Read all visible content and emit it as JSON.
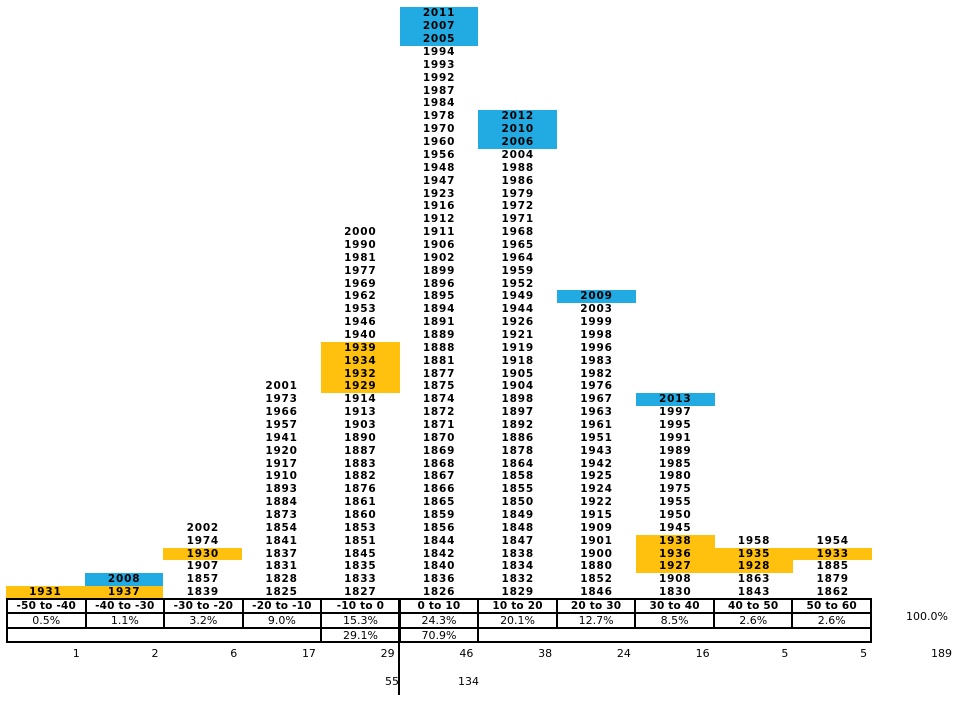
{
  "colors": {
    "highlight_recent_blue": "#21ABE2",
    "highlight_depression_orange": "#FFC10D",
    "text": "#000000",
    "background": "#FFFFFF"
  },
  "chart_data": {
    "type": "bar",
    "variant": "histogram of annual returns, each bar stacked from individual year labels, bottom-aligned",
    "title": "",
    "xlabel": "",
    "ylabel": "",
    "legend_position": "none",
    "grid": false,
    "categories": [
      "-50 to -40",
      "-40 to -30",
      "-30 to -20",
      "-20 to -10",
      "-10 to 0",
      "0 to 10",
      "10 to 20",
      "20 to 30",
      "30 to 40",
      "40 to 50",
      "50 to 60"
    ],
    "values": [
      1,
      2,
      6,
      17,
      29,
      46,
      38,
      24,
      16,
      5,
      5
    ],
    "percent_labels": [
      "0.5%",
      "1.1%",
      "3.2%",
      "9.0%",
      "15.3%",
      "24.3%",
      "20.1%",
      "12.7%",
      "8.5%",
      "2.6%",
      "2.6%"
    ],
    "highlight_blue_years": [
      "2005",
      "2006",
      "2007",
      "2008",
      "2009",
      "2010",
      "2011",
      "2012",
      "2013"
    ],
    "highlight_orange_years": [
      "1927",
      "1928",
      "1929",
      "1930",
      "1931",
      "1932",
      "1933",
      "1934",
      "1935",
      "1936",
      "1937",
      "1938",
      "1939"
    ],
    "bins": [
      {
        "label": "-50 to -40",
        "pct": "0.5%",
        "count": "1",
        "years": [
          "1931"
        ]
      },
      {
        "label": "-40 to -30",
        "pct": "1.1%",
        "count": "2",
        "years": [
          "2008",
          "1937"
        ]
      },
      {
        "label": "-30 to -20",
        "pct": "3.2%",
        "count": "6",
        "years": [
          "2002",
          "1974",
          "1930",
          "1907",
          "1857",
          "1839"
        ]
      },
      {
        "label": "-20 to -10",
        "pct": "9.0%",
        "count": "17",
        "years": [
          "2001",
          "1973",
          "1966",
          "1957",
          "1941",
          "1920",
          "1917",
          "1910",
          "1893",
          "1884",
          "1873",
          "1854",
          "1841",
          "1837",
          "1831",
          "1828",
          "1825"
        ]
      },
      {
        "label": "-10 to 0",
        "pct": "15.3%",
        "count": "29",
        "years": [
          "2000",
          "1990",
          "1981",
          "1977",
          "1969",
          "1962",
          "1953",
          "1946",
          "1940",
          "1939",
          "1934",
          "1932",
          "1929",
          "1914",
          "1913",
          "1903",
          "1890",
          "1887",
          "1883",
          "1882",
          "1876",
          "1861",
          "1860",
          "1853",
          "1851",
          "1845",
          "1835",
          "1833",
          "1827"
        ]
      },
      {
        "label": "0 to 10",
        "pct": "24.3%",
        "count": "46",
        "years": [
          "2011",
          "2007",
          "2005",
          "1994",
          "1993",
          "1992",
          "1987",
          "1984",
          "1978",
          "1970",
          "1960",
          "1956",
          "1948",
          "1947",
          "1923",
          "1916",
          "1912",
          "1911",
          "1906",
          "1902",
          "1899",
          "1896",
          "1895",
          "1894",
          "1891",
          "1889",
          "1888",
          "1881",
          "1877",
          "1875",
          "1874",
          "1872",
          "1871",
          "1870",
          "1869",
          "1868",
          "1867",
          "1866",
          "1865",
          "1859",
          "1856",
          "1844",
          "1842",
          "1840",
          "1836",
          "1826"
        ]
      },
      {
        "label": "10 to 20",
        "pct": "20.1%",
        "count": "38",
        "years": [
          "2012",
          "2010",
          "2006",
          "2004",
          "1988",
          "1986",
          "1979",
          "1972",
          "1971",
          "1968",
          "1965",
          "1964",
          "1959",
          "1952",
          "1949",
          "1944",
          "1926",
          "1921",
          "1919",
          "1918",
          "1905",
          "1904",
          "1898",
          "1897",
          "1892",
          "1886",
          "1878",
          "1864",
          "1858",
          "1855",
          "1850",
          "1849",
          "1848",
          "1847",
          "1838",
          "1834",
          "1832",
          "1829"
        ]
      },
      {
        "label": "20 to 30",
        "pct": "12.7%",
        "count": "24",
        "years": [
          "2009",
          "2003",
          "1999",
          "1998",
          "1996",
          "1983",
          "1982",
          "1976",
          "1967",
          "1963",
          "1961",
          "1951",
          "1943",
          "1942",
          "1925",
          "1924",
          "1922",
          "1915",
          "1909",
          "1901",
          "1900",
          "1880",
          "1852",
          "1846"
        ]
      },
      {
        "label": "30 to 40",
        "pct": "8.5%",
        "count": "16",
        "years": [
          "2013",
          "1997",
          "1995",
          "1991",
          "1989",
          "1985",
          "1980",
          "1975",
          "1955",
          "1950",
          "1945",
          "1938",
          "1936",
          "1927",
          "1908",
          "1830"
        ]
      },
      {
        "label": "40 to 50",
        "pct": "2.6%",
        "count": "5",
        "years": [
          "1958",
          "1935",
          "1928",
          "1863",
          "1843"
        ]
      },
      {
        "label": "50 to 60",
        "pct": "2.6%",
        "count": "5",
        "years": [
          "1954",
          "1933",
          "1885",
          "1879",
          "1862"
        ]
      }
    ],
    "totals": {
      "overall_pct": "100.0%",
      "overall_count": "189",
      "negative_side_pct": "29.1%",
      "positive_side_pct": "70.9%",
      "negative_side_count": "55",
      "positive_side_count": "134"
    }
  }
}
